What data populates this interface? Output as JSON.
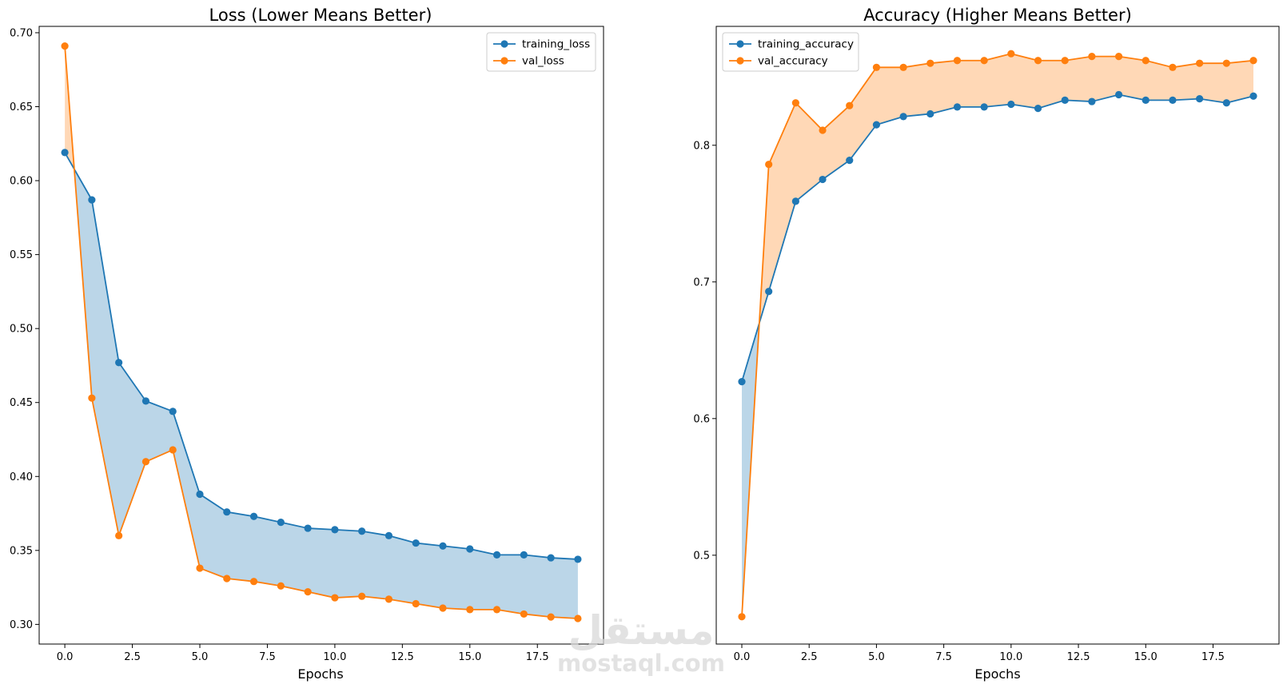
{
  "chart_data": [
    {
      "type": "line",
      "title": "Loss (Lower Means Better)",
      "xlabel": "Epochs",
      "ylabel": "",
      "xlim": [
        -0.95,
        19.95
      ],
      "ylim": [
        0.2867,
        0.7043
      ],
      "xticks": [
        0,
        2.5,
        5,
        7.5,
        10,
        12.5,
        15,
        17.5
      ],
      "xtick_labels": [
        "0.0",
        "2.5",
        "5.0",
        "7.5",
        "10.0",
        "12.5",
        "15.0",
        "17.5"
      ],
      "yticks": [
        0.3,
        0.35,
        0.4,
        0.45,
        0.5,
        0.55,
        0.6,
        0.65,
        0.7
      ],
      "ytick_labels": [
        "0.30",
        "0.35",
        "0.40",
        "0.45",
        "0.50",
        "0.55",
        "0.60",
        "0.65",
        "0.70"
      ],
      "grid": false,
      "legend_position": "top-right",
      "x": [
        0,
        1,
        2,
        3,
        4,
        5,
        6,
        7,
        8,
        9,
        10,
        11,
        12,
        13,
        14,
        15,
        16,
        17,
        18,
        19
      ],
      "series": [
        {
          "name": "training_loss",
          "color": "#1f77b4",
          "values": [
            0.619,
            0.587,
            0.477,
            0.451,
            0.444,
            0.388,
            0.376,
            0.373,
            0.369,
            0.365,
            0.364,
            0.363,
            0.36,
            0.355,
            0.353,
            0.351,
            0.347,
            0.347,
            0.345,
            0.344
          ]
        },
        {
          "name": "val_loss",
          "color": "#ff7f0e",
          "values": [
            0.691,
            0.453,
            0.36,
            0.41,
            0.418,
            0.338,
            0.331,
            0.329,
            0.326,
            0.322,
            0.318,
            0.319,
            0.317,
            0.314,
            0.311,
            0.31,
            0.31,
            0.307,
            0.305,
            0.304
          ]
        }
      ]
    },
    {
      "type": "line",
      "title": "Accuracy (Higher Means Better)",
      "xlabel": "Epochs",
      "ylabel": "",
      "xlim": [
        -0.95,
        19.95
      ],
      "ylim": [
        0.435,
        0.887
      ],
      "xticks": [
        0,
        2.5,
        5,
        7.5,
        10,
        12.5,
        15,
        17.5
      ],
      "xtick_labels": [
        "0.0",
        "2.5",
        "5.0",
        "7.5",
        "10.0",
        "12.5",
        "15.0",
        "17.5"
      ],
      "yticks": [
        0.5,
        0.6,
        0.7,
        0.8
      ],
      "ytick_labels": [
        "0.5",
        "0.6",
        "0.7",
        "0.8"
      ],
      "grid": false,
      "legend_position": "top-left",
      "x": [
        0,
        1,
        2,
        3,
        4,
        5,
        6,
        7,
        8,
        9,
        10,
        11,
        12,
        13,
        14,
        15,
        16,
        17,
        18,
        19
      ],
      "series": [
        {
          "name": "training_accuracy",
          "color": "#1f77b4",
          "values": [
            0.627,
            0.693,
            0.759,
            0.775,
            0.789,
            0.815,
            0.821,
            0.823,
            0.828,
            0.828,
            0.83,
            0.827,
            0.833,
            0.832,
            0.837,
            0.833,
            0.833,
            0.834,
            0.831,
            0.836
          ]
        },
        {
          "name": "val_accuracy",
          "color": "#ff7f0e",
          "values": [
            0.455,
            0.786,
            0.831,
            0.811,
            0.829,
            0.857,
            0.857,
            0.86,
            0.862,
            0.862,
            0.867,
            0.862,
            0.862,
            0.865,
            0.865,
            0.862,
            0.857,
            0.86,
            0.86,
            0.862
          ]
        }
      ]
    }
  ],
  "watermark": {
    "arabic": "مستقل",
    "latin": "mostaql.com"
  }
}
